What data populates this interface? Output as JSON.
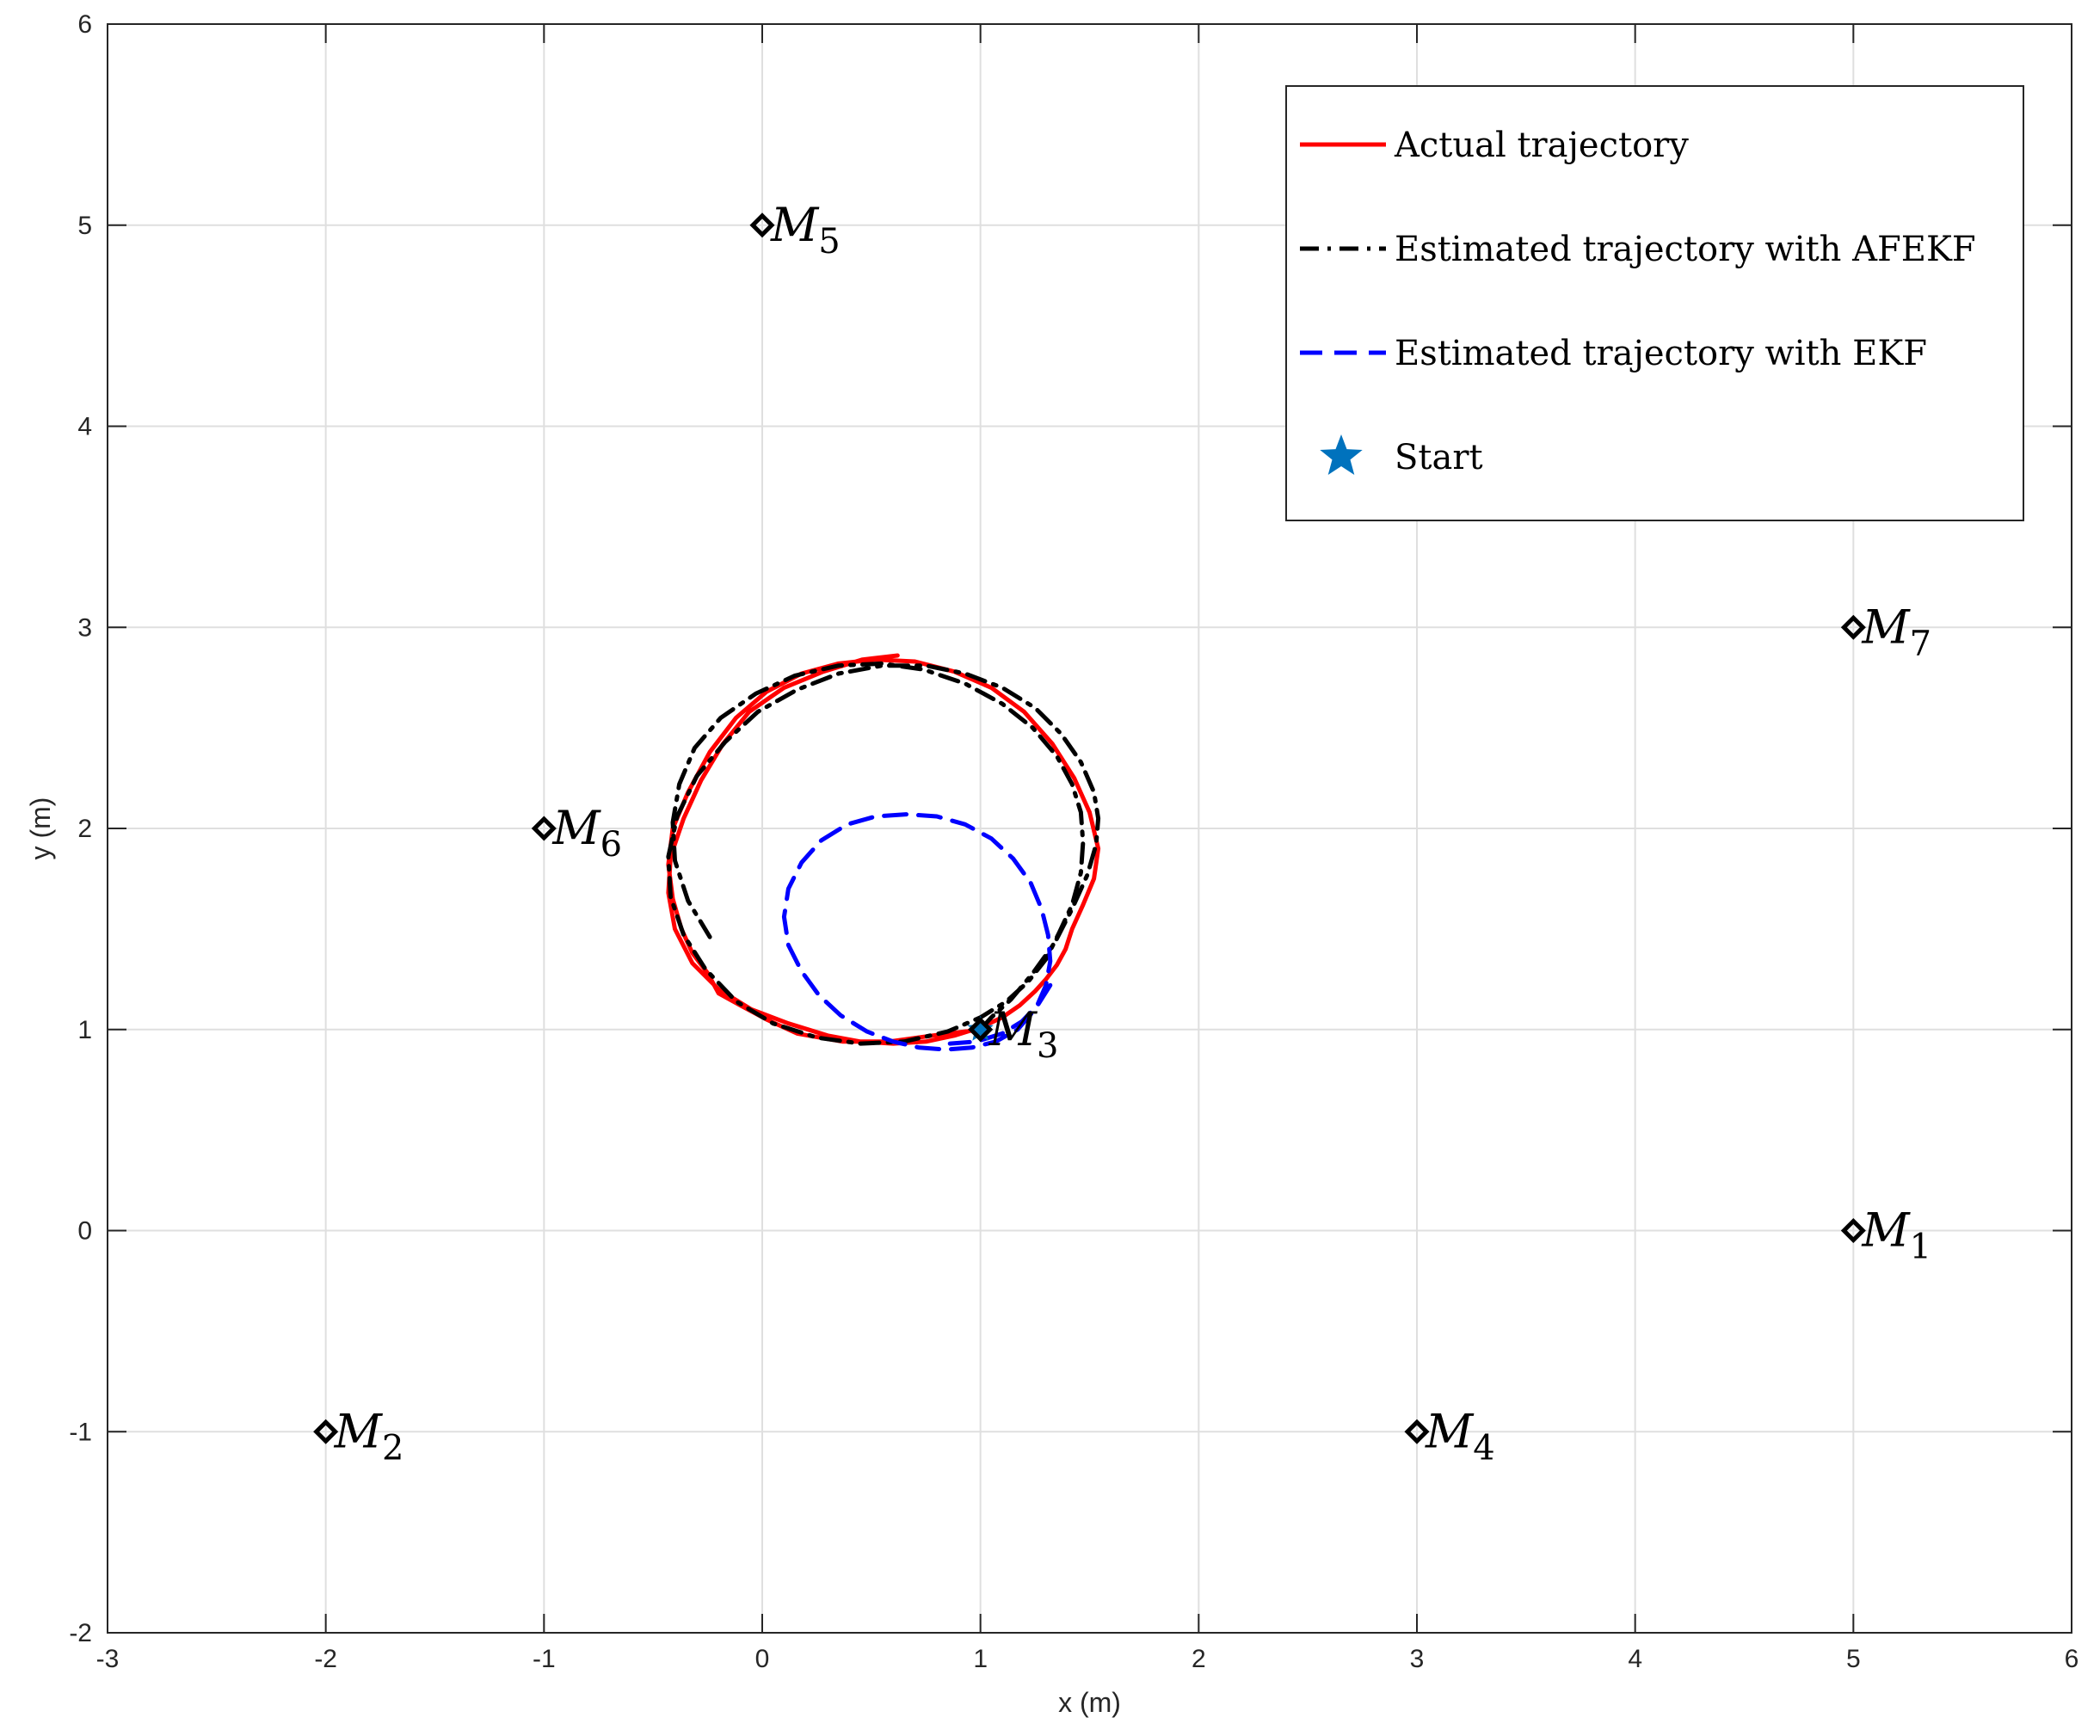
{
  "chart_data": {
    "type": "line",
    "title": "",
    "xlabel": "x (m)",
    "ylabel": "y (m)",
    "xlim": [
      -3,
      6
    ],
    "ylim": [
      -2,
      6
    ],
    "xticks": [
      -3,
      -2,
      -1,
      0,
      1,
      2,
      3,
      4,
      5,
      6
    ],
    "yticks": [
      -2,
      -1,
      0,
      1,
      2,
      3,
      4,
      5,
      6
    ],
    "grid": true,
    "legend_position": "top-right",
    "colors": {
      "actual": "#ff0000",
      "afekf": "#000000",
      "ekf": "#0000ff",
      "start": "#0072bd"
    },
    "series": [
      {
        "name": "Actual trajectory",
        "style": "solid",
        "x": [
          1.0,
          0.78,
          0.58,
          0.37,
          0.16,
          0.02,
          -0.1,
          -0.2,
          -0.25,
          -0.32,
          -0.37,
          -0.41,
          -0.43,
          -0.41,
          -0.34,
          -0.24,
          -0.12,
          0.02,
          0.18,
          0.35,
          0.52,
          0.7,
          0.88,
          1.05,
          1.2,
          1.33,
          1.43,
          1.5,
          1.54,
          1.52,
          1.47,
          1.42,
          1.39,
          1.35,
          1.3,
          1.25,
          1.18,
          1.1,
          1.0,
          0.88,
          0.75,
          0.6,
          0.45,
          0.3,
          0.12,
          -0.05,
          -0.2,
          -0.32,
          -0.4,
          -0.43,
          -0.42,
          -0.36,
          -0.28,
          -0.18,
          -0.06,
          0.1,
          0.28,
          0.46,
          0.62
        ],
        "y": [
          1.0,
          0.97,
          0.94,
          0.94,
          0.98,
          1.05,
          1.12,
          1.18,
          1.28,
          1.38,
          1.5,
          1.65,
          1.82,
          2.0,
          2.18,
          2.38,
          2.55,
          2.68,
          2.77,
          2.82,
          2.84,
          2.83,
          2.78,
          2.7,
          2.58,
          2.42,
          2.25,
          2.08,
          1.9,
          1.75,
          1.62,
          1.5,
          1.4,
          1.32,
          1.25,
          1.19,
          1.12,
          1.06,
          1.01,
          0.97,
          0.94,
          0.93,
          0.94,
          0.97,
          1.03,
          1.1,
          1.2,
          1.33,
          1.5,
          1.68,
          1.86,
          2.05,
          2.24,
          2.42,
          2.58,
          2.7,
          2.78,
          2.84,
          2.86
        ]
      },
      {
        "name": "Estimated trajectory with AFEKF",
        "style": "dashdot",
        "x": [
          1.0,
          1.05,
          1.14,
          1.24,
          1.34,
          1.42,
          1.49,
          1.53,
          1.54,
          1.52,
          1.46,
          1.37,
          1.25,
          1.1,
          0.93,
          0.75,
          0.55,
          0.35,
          0.16,
          -0.02,
          -0.17,
          -0.3,
          -0.39,
          -0.43,
          -0.42,
          -0.36,
          -0.26,
          -0.12,
          0.05,
          0.25,
          0.45,
          0.65,
          0.85,
          1.0,
          1.12,
          1.22,
          1.3,
          1.36,
          1.42,
          1.46,
          1.47,
          1.46,
          1.42,
          1.35,
          1.24,
          1.1,
          0.93,
          0.74,
          0.55,
          0.35,
          0.15,
          -0.03,
          -0.19,
          -0.31,
          -0.38,
          -0.41,
          -0.4,
          -0.34,
          -0.24
        ],
        "y": [
          1.0,
          1.06,
          1.15,
          1.28,
          1.43,
          1.6,
          1.77,
          1.92,
          2.05,
          2.18,
          2.33,
          2.47,
          2.6,
          2.7,
          2.77,
          2.81,
          2.81,
          2.77,
          2.69,
          2.58,
          2.43,
          2.26,
          2.06,
          1.86,
          1.66,
          1.47,
          1.3,
          1.14,
          1.03,
          0.96,
          0.93,
          0.94,
          0.99,
          1.06,
          1.14,
          1.24,
          1.35,
          1.48,
          1.62,
          1.78,
          1.93,
          2.08,
          2.22,
          2.36,
          2.5,
          2.62,
          2.72,
          2.79,
          2.82,
          2.81,
          2.76,
          2.67,
          2.55,
          2.4,
          2.22,
          2.03,
          1.84,
          1.64,
          1.46
        ]
      },
      {
        "name": "Estimated trajectory with EKF",
        "style": "dashed",
        "x": [
          1.32,
          1.25,
          1.17,
          1.07,
          0.96,
          0.84,
          0.72,
          0.6,
          0.48,
          0.36,
          0.26,
          0.18,
          0.12,
          0.1,
          0.12,
          0.18,
          0.27,
          0.39,
          0.52,
          0.66,
          0.8,
          0.93,
          1.05,
          1.15,
          1.23,
          1.28,
          1.31,
          1.32,
          1.3,
          1.26,
          1.19,
          1.1,
          0.98,
          0.86
        ],
        "y": [
          1.22,
          1.1,
          1.0,
          0.94,
          0.91,
          0.9,
          0.91,
          0.94,
          0.99,
          1.07,
          1.17,
          1.29,
          1.42,
          1.56,
          1.7,
          1.83,
          1.94,
          2.02,
          2.06,
          2.07,
          2.06,
          2.02,
          1.95,
          1.85,
          1.73,
          1.6,
          1.47,
          1.34,
          1.22,
          1.12,
          1.04,
          0.98,
          0.94,
          0.93
        ]
      }
    ],
    "start_marker": {
      "name": "Start",
      "x": 1.0,
      "y": 1.0
    },
    "landmarks": [
      {
        "label": "M",
        "sub": "1",
        "x": 5,
        "y": 0
      },
      {
        "label": "M",
        "sub": "2",
        "x": -2,
        "y": -1
      },
      {
        "label": "M",
        "sub": "3",
        "x": 1,
        "y": 1
      },
      {
        "label": "M",
        "sub": "4",
        "x": 3,
        "y": -1
      },
      {
        "label": "M",
        "sub": "5",
        "x": 0,
        "y": 5
      },
      {
        "label": "M",
        "sub": "6",
        "x": -1,
        "y": 2
      },
      {
        "label": "M",
        "sub": "7",
        "x": 5,
        "y": 3
      }
    ]
  }
}
